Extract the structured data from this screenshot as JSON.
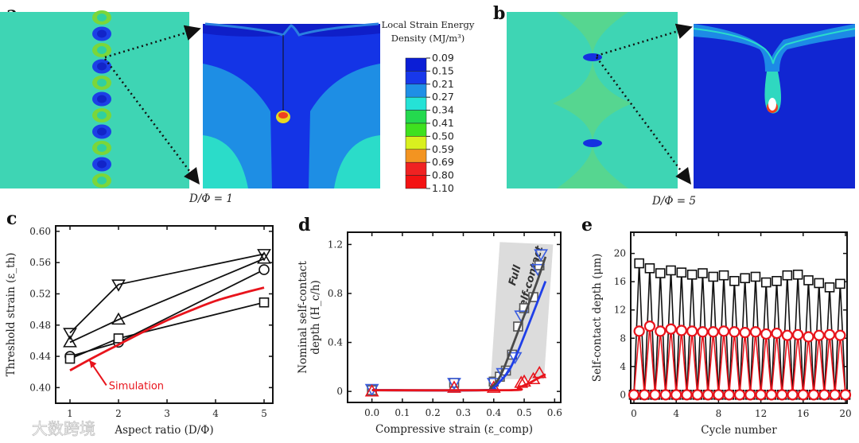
{
  "panels": {
    "a": {
      "label": "a",
      "caption": "D/Φ = 1"
    },
    "b": {
      "label": "b",
      "caption": "D/Φ = 5"
    }
  },
  "colorbar": {
    "title_line1": "Local Strain Energy",
    "title_line2": "Density (MJ/m³)",
    "labels": [
      "0.09",
      "0.15",
      "0.21",
      "0.27",
      "0.34",
      "0.41",
      "0.50",
      "0.59",
      "0.69",
      "0.80",
      "1.10"
    ],
    "colors": [
      "#0b1ed6",
      "#1838ea",
      "#1f8fe6",
      "#25e2d6",
      "#24d94e",
      "#3fe11f",
      "#d9f01f",
      "#f39421",
      "#f02222",
      "#f31212"
    ]
  },
  "watermark": "大数跨境",
  "chart_data": [
    {
      "id": "c",
      "panel_label": "c",
      "type": "line",
      "xlabel": "Aspect ratio (D/Φ)",
      "ylabel": "Threshold strain (ε_th)",
      "xlim": [
        0.705,
        5.18
      ],
      "ylim": [
        0.38,
        0.607
      ],
      "xticks": [
        1,
        2,
        3,
        4,
        5
      ],
      "xtick_labels": [
        "1",
        "2",
        "3",
        "4",
        "5"
      ],
      "yticks": [
        0.4,
        0.44,
        0.48,
        0.52,
        0.56,
        0.6
      ],
      "ytick_labels": [
        "0.40",
        "0.44",
        "0.48",
        "0.52",
        "0.56",
        "0.60"
      ],
      "annotation": "Simulation",
      "series": [
        {
          "name": "down-triangle",
          "marker": "tri-down",
          "color": "#111111",
          "x": [
            1,
            2,
            5
          ],
          "y": [
            0.47,
            0.532,
            0.571
          ]
        },
        {
          "name": "up-triangle",
          "marker": "tri-up",
          "color": "#111111",
          "x": [
            1,
            2,
            5
          ],
          "y": [
            0.458,
            0.487,
            0.565
          ]
        },
        {
          "name": "circle",
          "marker": "circle",
          "color": "#111111",
          "x": [
            1,
            2,
            5
          ],
          "y": [
            0.44,
            0.458,
            0.551
          ]
        },
        {
          "name": "square",
          "marker": "square",
          "color": "#111111",
          "x": [
            1,
            2,
            5
          ],
          "y": [
            0.437,
            0.463,
            0.509
          ]
        },
        {
          "name": "Simulation",
          "marker": "none",
          "color": "#e8141c",
          "smooth": true,
          "x": [
            1,
            1.5,
            2,
            2.5,
            3,
            3.5,
            4,
            4.5,
            5
          ],
          "y": [
            0.422,
            0.439,
            0.455,
            0.471,
            0.486,
            0.499,
            0.511,
            0.52,
            0.528
          ]
        }
      ]
    },
    {
      "id": "d",
      "panel_label": "d",
      "type": "scatter",
      "xlabel": "Compressive strain (ε_comp)",
      "ylabel_line1": "Nominal self-contact",
      "ylabel_line2": "depth (H_c/h)",
      "xlim": [
        -0.08,
        0.62
      ],
      "ylim": [
        -0.09,
        1.3
      ],
      "xticks": [
        0,
        0.1,
        0.2,
        0.3,
        0.4,
        0.5,
        0.6
      ],
      "xtick_labels": [
        "0.0",
        "0.1",
        "0.2",
        "0.3",
        "0.4",
        "0.5",
        "0.6"
      ],
      "yticks": [
        0,
        0.4,
        0.8,
        1.2
      ],
      "ytick_labels": [
        "0",
        "0.4",
        "0.8",
        "1.2"
      ],
      "annotation_line1": "Full",
      "annotation_line2": "self-contact",
      "series": [
        {
          "name": "gray-squares",
          "marker": "square",
          "color": "#555555",
          "x": [
            0,
            0.27,
            0.4,
            0.42,
            0.44,
            0.46,
            0.48,
            0.5,
            0.53,
            0.55
          ],
          "y": [
            0.01,
            0.07,
            0.08,
            0.12,
            0.17,
            0.3,
            0.53,
            0.68,
            0.77,
            1.03
          ]
        },
        {
          "name": "blue-down-triangles",
          "marker": "tri-down",
          "color": "#3a5de0",
          "x": [
            0,
            0.27,
            0.4,
            0.43,
            0.47,
            0.49,
            0.545,
            0.555
          ],
          "y": [
            0.02,
            0.07,
            0.07,
            0.15,
            0.28,
            0.62,
            1.0,
            1.12
          ]
        },
        {
          "name": "red-up-triangles",
          "marker": "tri-up",
          "color": "#e8141c",
          "x": [
            0,
            0.27,
            0.4,
            0.49,
            0.5,
            0.53,
            0.55
          ],
          "y": [
            0.0,
            0.03,
            0.03,
            0.07,
            0.08,
            0.1,
            0.15
          ]
        },
        {
          "name": "gray-fit",
          "marker": "none",
          "color": "#4a4a4a",
          "smooth": true,
          "x": [
            0,
            0.36,
            0.39,
            0.41,
            0.43,
            0.46,
            0.5,
            0.54,
            0.57
          ],
          "y": [
            0.01,
            0.01,
            0.03,
            0.08,
            0.17,
            0.36,
            0.62,
            0.88,
            1.1
          ]
        },
        {
          "name": "blue-fit",
          "marker": "none",
          "color": "#1f3fe8",
          "smooth": true,
          "x": [
            0,
            0.37,
            0.4,
            0.42,
            0.45,
            0.48,
            0.52,
            0.57
          ],
          "y": [
            0.01,
            0.01,
            0.03,
            0.08,
            0.17,
            0.33,
            0.58,
            0.9
          ]
        },
        {
          "name": "red-fit",
          "marker": "none",
          "color": "#e8141c",
          "smooth": true,
          "x": [
            0,
            0.45,
            0.48,
            0.51,
            0.54,
            0.57
          ],
          "y": [
            0.01,
            0.01,
            0.03,
            0.06,
            0.1,
            0.14
          ]
        }
      ]
    },
    {
      "id": "e",
      "panel_label": "e",
      "type": "line",
      "xlabel": "Cycle number",
      "ylabel": "Self-contact depth (μm)",
      "xlim": [
        -0.3,
        20.15
      ],
      "ylim": [
        -1.2,
        23
      ],
      "xticks": [
        0,
        4,
        8,
        12,
        16,
        20
      ],
      "xtick_labels": [
        "0",
        "4",
        "8",
        "12",
        "16",
        "20"
      ],
      "yticks": [
        0,
        4,
        8,
        12,
        16,
        20
      ],
      "ytick_labels": [
        "0",
        "4",
        "8",
        "12",
        "16",
        "20"
      ],
      "series": [
        {
          "name": "black-squares",
          "marker": "square",
          "color": "#111111",
          "zigzag": true,
          "peaks": [
            18.6,
            17.9,
            17.2,
            17.6,
            17.3,
            17.0,
            17.2,
            16.7,
            16.9,
            16.1,
            16.5,
            16.7,
            15.9,
            16.1,
            16.9,
            17.0,
            16.2,
            15.8,
            15.2,
            15.7
          ]
        },
        {
          "name": "red-circles",
          "marker": "circle-red",
          "color": "#e8141c",
          "zigzag": true,
          "peaks": [
            9.0,
            9.7,
            9.0,
            9.3,
            9.1,
            9.0,
            8.9,
            8.9,
            9.0,
            8.9,
            8.8,
            8.9,
            8.6,
            8.7,
            8.4,
            8.5,
            8.2,
            8.4,
            8.5,
            8.4
          ]
        }
      ]
    }
  ]
}
